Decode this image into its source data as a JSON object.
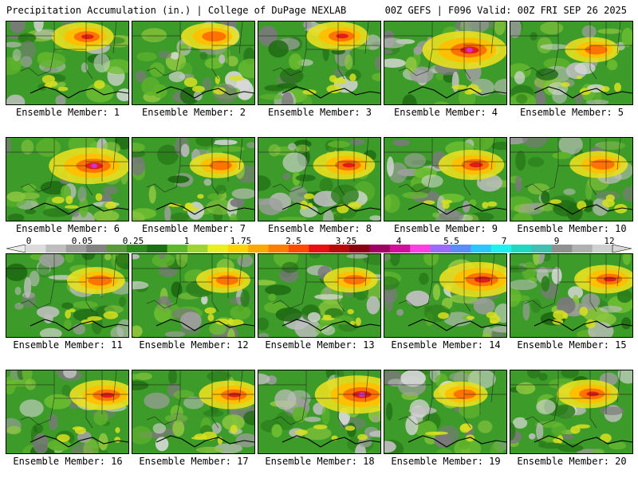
{
  "header": {
    "title_left": "Precipitation Accumulation (in.) | College of DuPage NEXLAB",
    "title_right": "00Z GEFS | F096 Valid: 00Z FRI SEP 26 2025"
  },
  "colorbar": {
    "tick_labels": [
      "0",
      "0.05",
      "0.25",
      "1",
      "1.75",
      "2.5",
      "3.25",
      "4",
      "5.5",
      "7",
      "9",
      "12"
    ],
    "colors": [
      "#dcdcdc",
      "#bebebe",
      "#a0a0a0",
      "#828282",
      "#5a9a3a",
      "#2f8a1e",
      "#1d6e14",
      "#5fb82a",
      "#9fd530",
      "#e8f020",
      "#ffd400",
      "#ffa800",
      "#ff7d00",
      "#ff4a00",
      "#e81010",
      "#b80a0a",
      "#8a0010",
      "#a00060",
      "#d0109a",
      "#ff40e0",
      "#9b6bff",
      "#5a8cff",
      "#28c8ff",
      "#20f0f0",
      "#20d8c0",
      "#40c0b0",
      "#909090",
      "#b0b0b0",
      "#d0d0d0"
    ]
  },
  "panels": [
    {
      "label": "Ensemble Member: 1",
      "hot": 0.6
    },
    {
      "label": "Ensemble Member: 2",
      "hot": 0.55
    },
    {
      "label": "Ensemble Member: 3",
      "hot": 0.6
    },
    {
      "label": "Ensemble Member: 4",
      "hot": 0.9
    },
    {
      "label": "Ensemble Member: 5",
      "hot": 0.5
    },
    {
      "label": "Ensemble Member: 6",
      "hot": 0.85
    },
    {
      "label": "Ensemble Member: 7",
      "hot": 0.5
    },
    {
      "label": "Ensemble Member: 8",
      "hot": 0.6
    },
    {
      "label": "Ensemble Member: 9",
      "hot": 0.65
    },
    {
      "label": "Ensemble Member: 10",
      "hot": 0.55
    },
    {
      "label": "Ensemble Member: 11",
      "hot": 0.55
    },
    {
      "label": "Ensemble Member: 12",
      "hot": 0.5
    },
    {
      "label": "Ensemble Member: 13",
      "hot": 0.5
    },
    {
      "label": "Ensemble Member: 14",
      "hot": 0.8
    },
    {
      "label": "Ensemble Member: 15",
      "hot": 0.6
    },
    {
      "label": "Ensemble Member: 16",
      "hot": 0.65
    },
    {
      "label": "Ensemble Member: 17",
      "hot": 0.6
    },
    {
      "label": "Ensemble Member: 18",
      "hot": 0.9
    },
    {
      "label": "Ensemble Member: 19",
      "hot": 0.5
    },
    {
      "label": "Ensemble Member: 20",
      "hot": 0.6
    }
  ]
}
